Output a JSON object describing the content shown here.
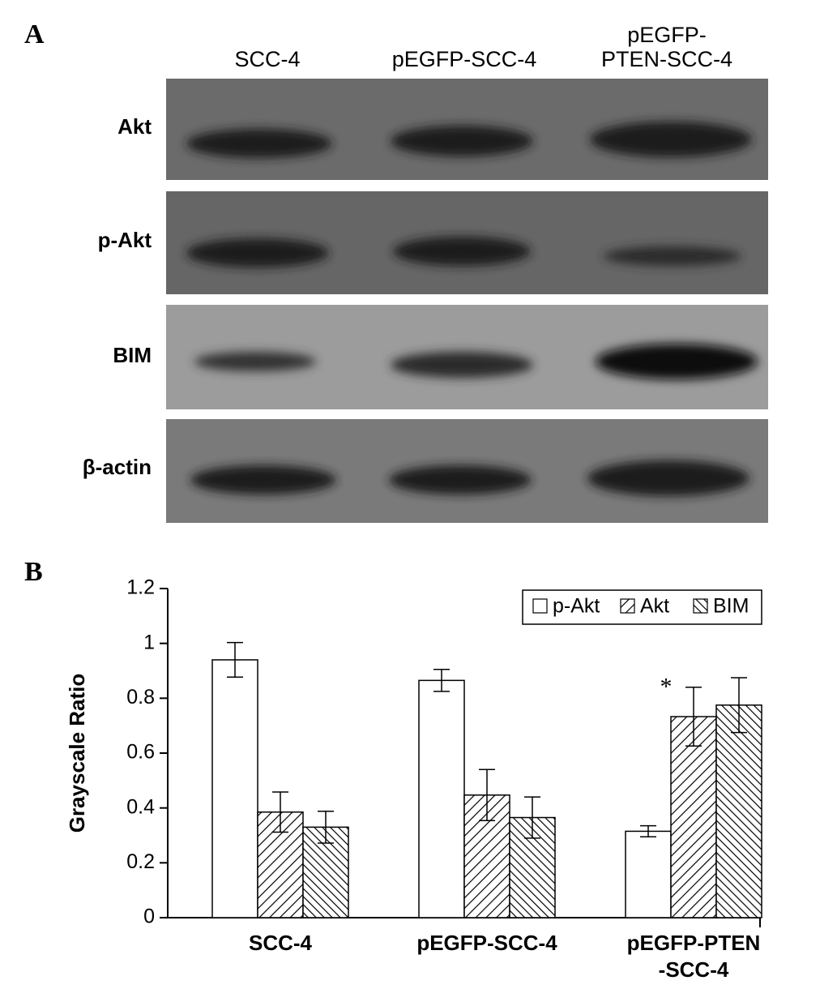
{
  "panel_a": {
    "label": "A",
    "lanes": [
      [
        "SCC-4"
      ],
      [
        "pEGFP-SCC-4"
      ],
      [
        "pEGFP-",
        "PTEN-SCC-4"
      ]
    ],
    "rows": [
      "Akt",
      "p-Akt",
      "BIM",
      "β-actin"
    ]
  },
  "panel_b_label": "B",
  "chart_data": {
    "type": "bar",
    "ylabel": "Grayscale Ratio",
    "categories": [
      [
        "SCC-4"
      ],
      [
        "pEGFP-SCC-4"
      ],
      [
        "pEGFP-PTEN",
        "-SCC-4"
      ]
    ],
    "series": [
      {
        "name": "p-Akt",
        "color": "#ffffff",
        "pattern": "none",
        "values": [
          0.94,
          0.865,
          0.315
        ],
        "errors": [
          0.063,
          0.04,
          0.02
        ]
      },
      {
        "name": "Akt",
        "color": "#ffffff",
        "pattern": "forward",
        "values": [
          0.385,
          0.447,
          0.733
        ],
        "errors": [
          0.073,
          0.093,
          0.107
        ]
      },
      {
        "name": "BIM",
        "color": "#ffffff",
        "pattern": "backward",
        "values": [
          0.33,
          0.365,
          0.775
        ],
        "errors": [
          0.058,
          0.075,
          0.1
        ]
      }
    ],
    "ylim": [
      0,
      1.2
    ],
    "yticks": [
      0,
      0.2,
      0.4,
      0.6,
      0.8,
      1,
      1.2
    ],
    "annotations": [
      {
        "text": "*",
        "series": 1,
        "index": 2
      }
    ],
    "legend": "top-right"
  }
}
